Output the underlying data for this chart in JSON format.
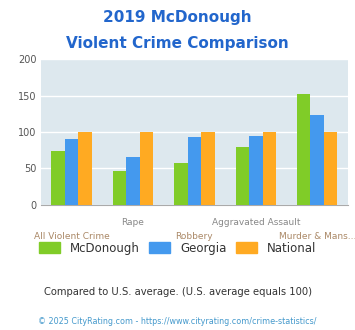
{
  "title_line1": "2019 McDonough",
  "title_line2": "Violent Crime Comparison",
  "categories": [
    "All Violent Crime",
    "Rape",
    "Robbery",
    "Aggravated Assault",
    "Murder & Mans..."
  ],
  "series": {
    "McDonough": [
      74,
      46,
      57,
      80,
      152
    ],
    "Georgia": [
      90,
      66,
      93,
      94,
      123
    ],
    "National": [
      100,
      100,
      100,
      100,
      100
    ]
  },
  "colors": {
    "McDonough": "#80cc28",
    "Georgia": "#4499ee",
    "National": "#ffaa22"
  },
  "ylim": [
    0,
    200
  ],
  "yticks": [
    0,
    50,
    100,
    150,
    200
  ],
  "plot_bg": "#dde8ee",
  "title_color": "#2266cc",
  "legend_labels": [
    "McDonough",
    "Georgia",
    "National"
  ],
  "legend_text_color": "#333333",
  "bar_width": 0.22,
  "grid_color": "#ffffff",
  "subtitle_text": "Compared to U.S. average. (U.S. average equals 100)",
  "subtitle_color": "#333333",
  "footer_text": "© 2025 CityRating.com - https://www.cityrating.com/crime-statistics/",
  "footer_color": "#4499cc",
  "upper_label_color": "#888888",
  "lower_label_color": "#aa8866",
  "label_upper": [
    "Rape",
    "Aggravated Assault"
  ],
  "label_upper_idx": [
    1,
    3
  ],
  "label_lower": [
    "All Violent Crime",
    "Robbery",
    "Murder & Mans..."
  ],
  "label_lower_idx": [
    0,
    2,
    4
  ]
}
